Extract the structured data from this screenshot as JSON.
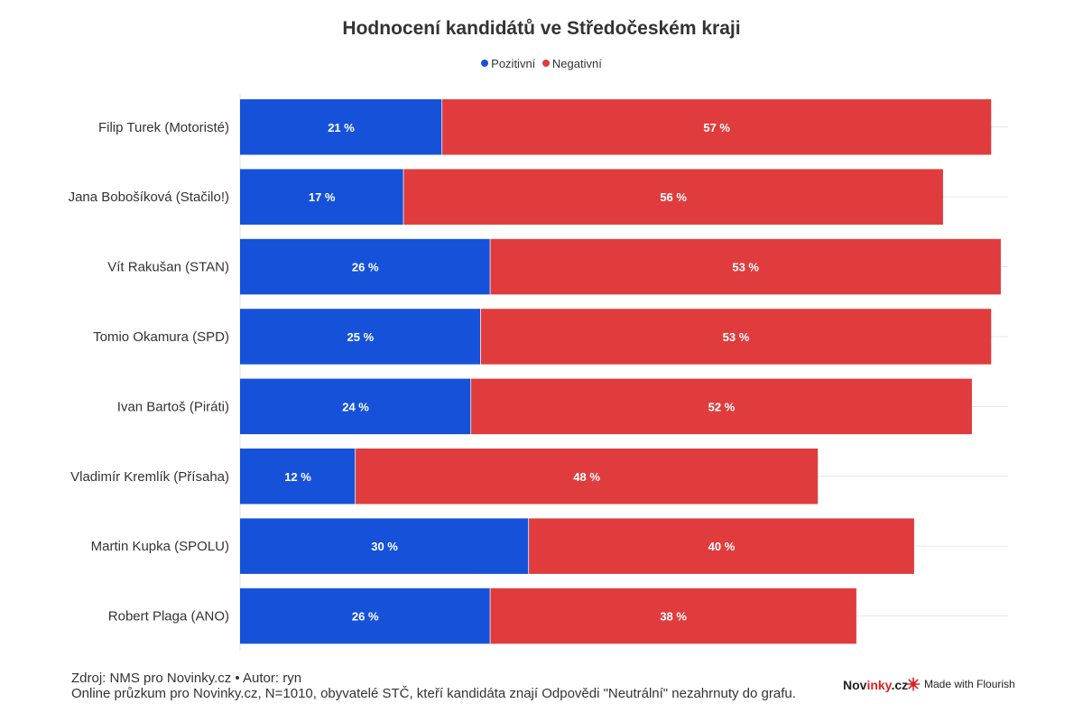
{
  "chart_data": {
    "type": "bar",
    "orientation": "horizontal",
    "stacked": true,
    "title": "Hodnocení kandidátů ve Středočeském kraji",
    "categories": [
      "Filip Turek (Motoristé)",
      "Jana Bobošíková (Stačilo!)",
      "Vít Rakušan (STAN)",
      "Tomio Okamura (SPD)",
      "Ivan Bartoš (Piráti)",
      "Vladimír Kremlík (Přísaha)",
      "Martin Kupka (SPOLU)",
      "Robert Plaga (ANO)"
    ],
    "series": [
      {
        "name": "Pozitivní",
        "color": "#1652d9",
        "values": [
          21,
          17,
          26,
          25,
          24,
          12,
          30,
          26
        ]
      },
      {
        "name": "Negativní",
        "color": "#e03c3e",
        "values": [
          57,
          56,
          53,
          53,
          52,
          48,
          40,
          38
        ]
      }
    ],
    "value_suffix": " %",
    "xlim": [
      0,
      80
    ],
    "grid": true,
    "legend_position": "top-center"
  },
  "footer": {
    "source": "Zdroj: NMS pro Novinky.cz • Autor: ryn",
    "note": "Online průzkum pro Novinky.cz, N=1010, obyvatelé STČ, kteří kandidáta znají Odpovědi \"Neutrální\" nezahrnuty do grafu."
  },
  "branding": {
    "novinky_prefix": "Nov",
    "novinky_highlight": "inky",
    "novinky_suffix": ".cz",
    "flourish": "Made with Flourish",
    "flourish_icon": "flourish-logo-icon"
  }
}
